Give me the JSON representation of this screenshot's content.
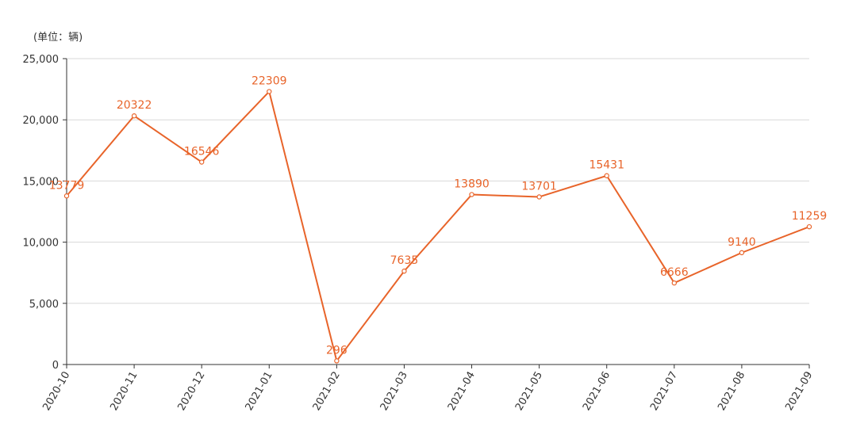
{
  "chart_data": {
    "type": "line",
    "unit_label": "(单位：辆)",
    "x": [
      "2020-10",
      "2020-11",
      "2020-12",
      "2021-01",
      "2021-02",
      "2021-03",
      "2021-04",
      "2021-05",
      "2021-06",
      "2021-07",
      "2021-08",
      "2021-09"
    ],
    "series": [
      {
        "values": [
          13779,
          20322,
          16546,
          22309,
          296,
          7635,
          13890,
          13701,
          15431,
          6666,
          9140,
          11259
        ]
      }
    ],
    "data_labels": [
      "13779",
      "20322",
      "16546",
      "22309",
      "296",
      "7635",
      "13890",
      "13701",
      "15431",
      "6666",
      "9140",
      "11259"
    ],
    "ylim": [
      0,
      25000
    ],
    "yticks": [
      0,
      5000,
      10000,
      15000,
      20000,
      25000
    ],
    "ytick_labels": [
      "0",
      "5,000",
      "10,000",
      "15,000",
      "20,000",
      "25,000"
    ],
    "grid": true,
    "colors": {
      "line": "#e8642a",
      "label": "#e8642a",
      "grid": "#d8d8d8",
      "axis": "#333333"
    }
  }
}
